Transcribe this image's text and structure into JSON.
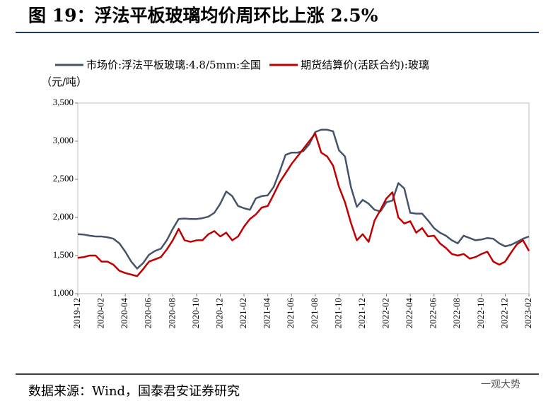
{
  "chart_data": {
    "type": "line",
    "title": "图 19：浮法平板玻璃均价周环比上涨 2.5%",
    "y_label": "（元/吨）",
    "source": "数据来源：Wind，国泰君安证券研究",
    "watermark": "一观大势",
    "categories": [
      "2019-12",
      null,
      null,
      null,
      "2020-02",
      null,
      null,
      null,
      "2020-04",
      null,
      null,
      null,
      "2020-06",
      null,
      null,
      null,
      "2020-08",
      null,
      null,
      null,
      "2020-10",
      null,
      null,
      null,
      "2020-12",
      null,
      null,
      null,
      "2021-02",
      null,
      null,
      null,
      "2021-04",
      null,
      null,
      null,
      "2021-06",
      null,
      null,
      null,
      "2021-08",
      null,
      null,
      null,
      "2021-10",
      null,
      null,
      null,
      "2021-12",
      null,
      null,
      null,
      "2022-02",
      null,
      null,
      null,
      "2022-04",
      null,
      null,
      null,
      "2022-06",
      null,
      null,
      null,
      "2022-08",
      null,
      null,
      null,
      "2022-10",
      null,
      null,
      null,
      "2022-12",
      null,
      null,
      null,
      "2023-02"
    ],
    "series": [
      {
        "name": "市场价:浮法平板玻璃:4.8/5mm:全国",
        "color": "#44546a",
        "values": [
          1780,
          1775,
          1760,
          1750,
          1750,
          1740,
          1720,
          1660,
          1550,
          1420,
          1330,
          1400,
          1510,
          1560,
          1590,
          1700,
          1850,
          1980,
          1985,
          1980,
          1980,
          1990,
          2010,
          2060,
          2180,
          2340,
          2280,
          2150,
          2120,
          2100,
          2250,
          2280,
          2290,
          2400,
          2600,
          2820,
          2850,
          2850,
          2870,
          2960,
          3120,
          3150,
          3150,
          3130,
          2880,
          2800,
          2400,
          2140,
          2230,
          2180,
          2100,
          2080,
          2200,
          2220,
          2450,
          2380,
          2060,
          2050,
          2050,
          1960,
          1860,
          1800,
          1760,
          1700,
          1660,
          1760,
          1730,
          1700,
          1710,
          1730,
          1720,
          1660,
          1620,
          1640,
          1680,
          1720,
          1750
        ]
      },
      {
        "name": "期货结算价(活跃合约):玻璃",
        "color": "#c00000",
        "values": [
          1470,
          1480,
          1500,
          1500,
          1420,
          1420,
          1380,
          1300,
          1270,
          1250,
          1230,
          1320,
          1420,
          1450,
          1480,
          1580,
          1700,
          1850,
          1700,
          1680,
          1700,
          1700,
          1780,
          1820,
          1750,
          1800,
          1700,
          1750,
          1880,
          1980,
          2040,
          2130,
          2150,
          2300,
          2460,
          2580,
          2700,
          2800,
          2900,
          3000,
          3100,
          2850,
          2800,
          2680,
          2400,
          2200,
          1930,
          1700,
          1780,
          1680,
          1960,
          2100,
          2250,
          2330,
          2000,
          1920,
          1950,
          1800,
          1860,
          1750,
          1760,
          1660,
          1600,
          1520,
          1500,
          1520,
          1460,
          1480,
          1520,
          1550,
          1420,
          1380,
          1420,
          1540,
          1650,
          1700,
          1560
        ]
      }
    ],
    "ylim": [
      1000,
      3500
    ],
    "yticks": [
      {
        "value": 1000,
        "label": "1,000"
      },
      {
        "value": 1500,
        "label": "1,500"
      },
      {
        "value": 2000,
        "label": "2,000"
      },
      {
        "value": 2500,
        "label": "2,500"
      },
      {
        "value": 3000,
        "label": "3,000"
      },
      {
        "value": 3500,
        "label": "3,500"
      }
    ],
    "grid": false
  }
}
